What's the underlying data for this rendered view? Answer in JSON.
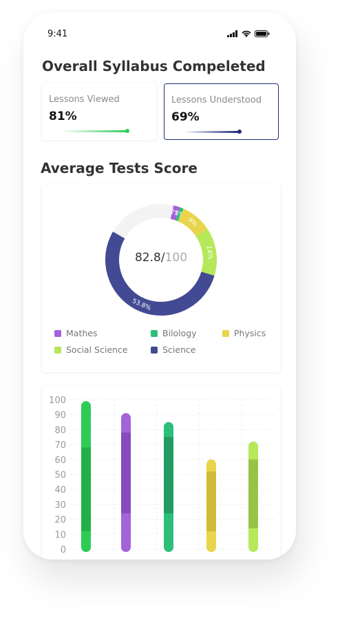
{
  "status_bar": {
    "time": "9:41"
  },
  "overview": {
    "title": "Overall Syllabus Compeleted",
    "viewed": {
      "label": "Lessons Viewed",
      "value": "81%",
      "progress": 0.81,
      "color": "#2ecc55"
    },
    "understood": {
      "label": "Lessons Understood",
      "value": "69%",
      "progress": 0.69,
      "color": "#1f2a78"
    }
  },
  "tests": {
    "title": "Average Tests Score",
    "score": "82.8/",
    "max": "100"
  },
  "legend": [
    {
      "name": "Mathes",
      "color": "#a363d9"
    },
    {
      "name": "Bilology",
      "color": "#2dbe7a"
    },
    {
      "name": "Physics",
      "color": "#e8d44d"
    },
    {
      "name": "Social Science",
      "color": "#b6e85a"
    },
    {
      "name": "Science",
      "color": "#434a94"
    }
  ],
  "chart_data": [
    {
      "type": "pie",
      "categories": [
        "Mathes",
        "Bilology",
        "Physics",
        "Social Science",
        "Science"
      ],
      "values": [
        2,
        1,
        9,
        14,
        53.8
      ],
      "labels": [
        "2%",
        "1%",
        "9%",
        "14%",
        "53.8%"
      ],
      "colors": [
        "#a363d9",
        "#2dbe7a",
        "#e8d44d",
        "#b6e85a",
        "#434a94"
      ],
      "remainder_color": "#f3f3f3"
    },
    {
      "type": "bar",
      "y_ticks": [
        "100",
        "90",
        "80",
        "70",
        "60",
        "50",
        "40",
        "30",
        "20",
        "10",
        "0"
      ],
      "ylim": [
        0,
        100
      ],
      "series": [
        {
          "color": "#2ecc55",
          "dark": "#1a9a3c",
          "value": 99,
          "band": [
            12,
            68
          ]
        },
        {
          "color": "#a363d9",
          "dark": "#6f3aa6",
          "value": 91,
          "band": [
            24,
            78
          ]
        },
        {
          "color": "#2dbe7a",
          "dark": "#1b7e4f",
          "value": 85,
          "band": [
            24,
            75
          ]
        },
        {
          "color": "#e8d44d",
          "dark": "#b9a52a",
          "value": 60,
          "band": [
            12,
            52
          ]
        },
        {
          "color": "#b6e85a",
          "dark": "#7fa436",
          "value": 72,
          "band": [
            14,
            60
          ]
        }
      ]
    }
  ]
}
